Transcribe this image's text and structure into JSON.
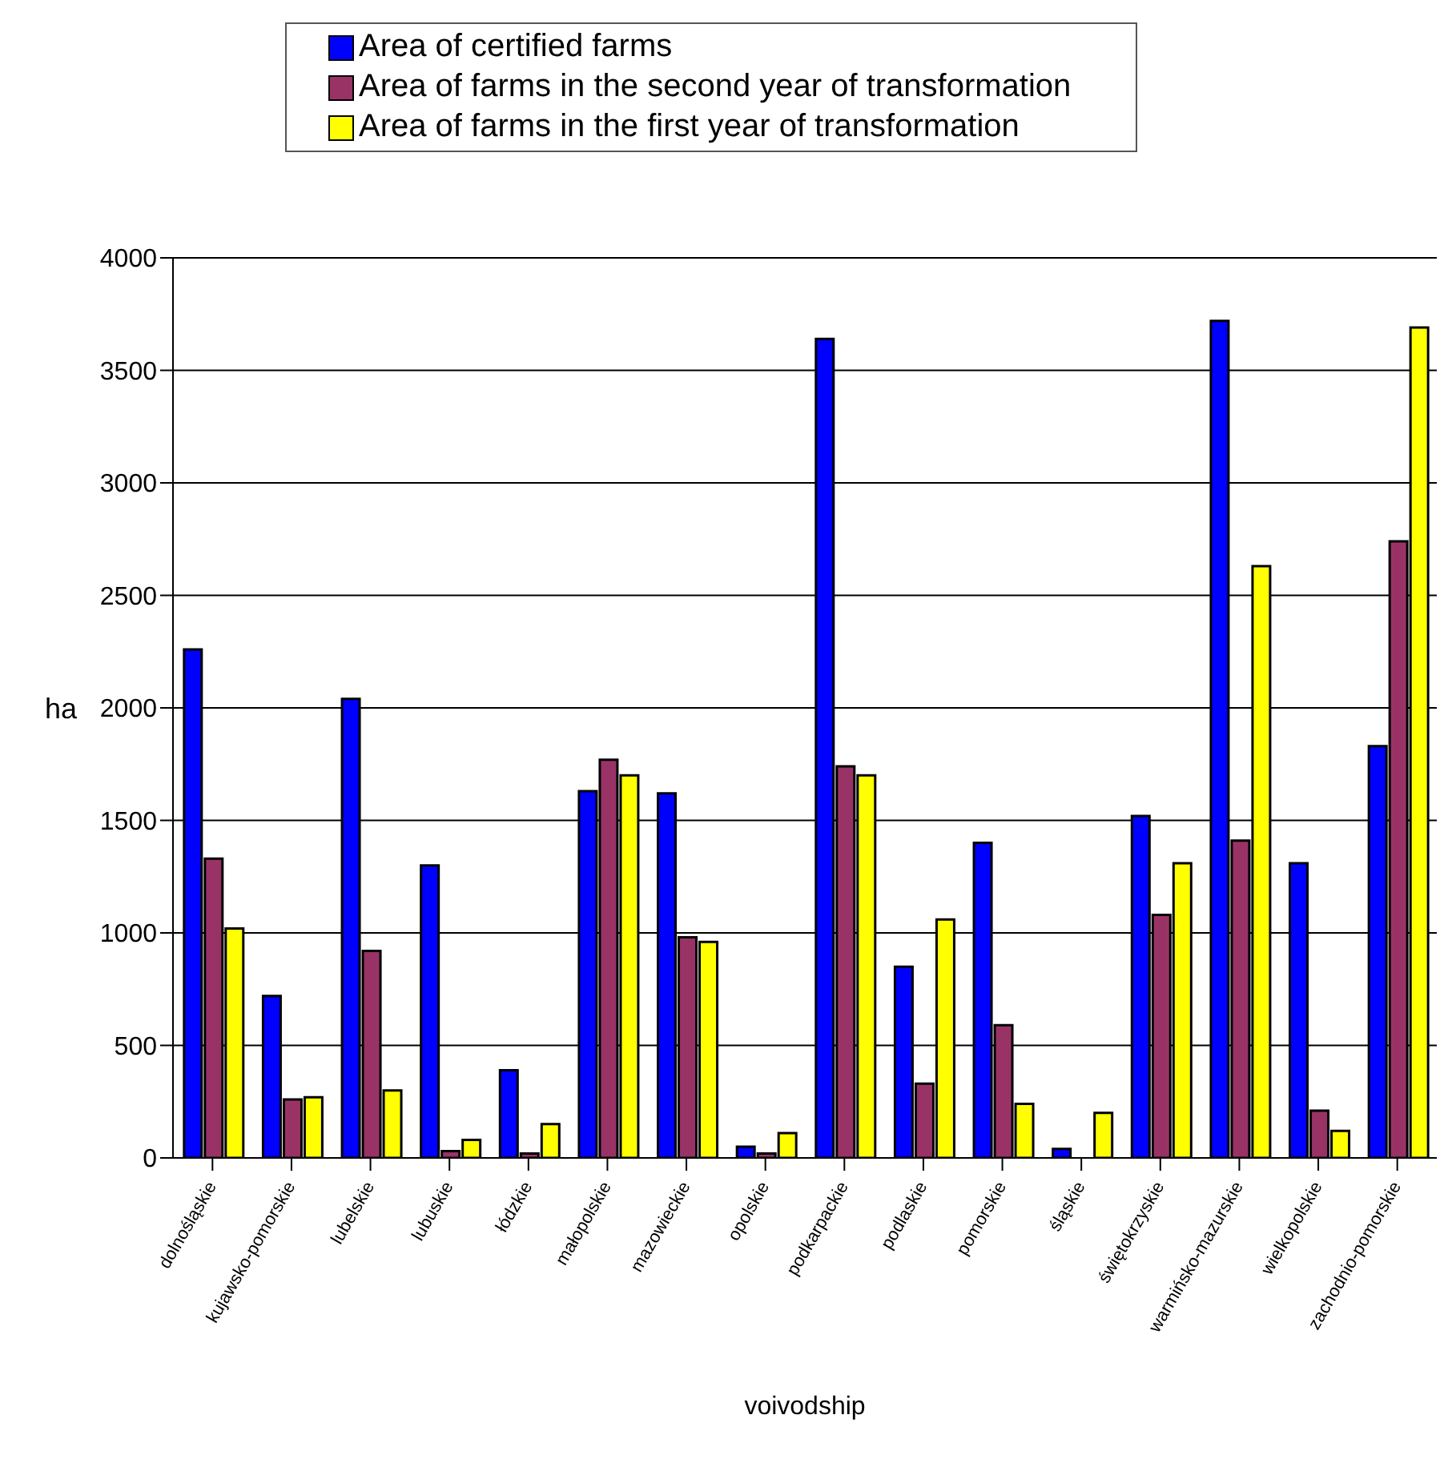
{
  "chart_data": {
    "type": "bar",
    "xlabel": "voivodship",
    "ylabel": "ha",
    "categories": [
      "dolnośląskie",
      "kujawsko-pomorskie",
      "lubelskie",
      "lubuskie",
      "łódzkie",
      "małopolskie",
      "mazowieckie",
      "opolskie",
      "podkarpackie",
      "podlaskie",
      "pomorskie",
      "śląskie",
      "świętokrzyskie",
      "warmińsko-mazurskie",
      "wielkopolskie",
      "zachodnio-pomorskie"
    ],
    "series": [
      {
        "name": "Area of certified farms",
        "color": "#0000ff",
        "values": [
          2260,
          720,
          2040,
          1300,
          390,
          1630,
          1620,
          50,
          3640,
          850,
          1400,
          40,
          1520,
          3720,
          1310,
          1830
        ]
      },
      {
        "name": "Area of farms in the second year of transformation",
        "color": "#993366",
        "values": [
          1330,
          260,
          920,
          30,
          20,
          1770,
          980,
          20,
          1740,
          330,
          590,
          null,
          1080,
          1410,
          210,
          2740
        ]
      },
      {
        "name": "Area of farms in the first year of transformation",
        "color": "#ffff00",
        "values": [
          1020,
          270,
          300,
          80,
          150,
          1700,
          960,
          110,
          1700,
          1060,
          240,
          200,
          1310,
          2630,
          120,
          3690
        ]
      }
    ],
    "ylim": [
      0,
      4000
    ],
    "yticks": [
      0,
      500,
      1000,
      1500,
      2000,
      2500,
      3000,
      3500,
      4000
    ],
    "grid": "y",
    "legend": "top"
  }
}
